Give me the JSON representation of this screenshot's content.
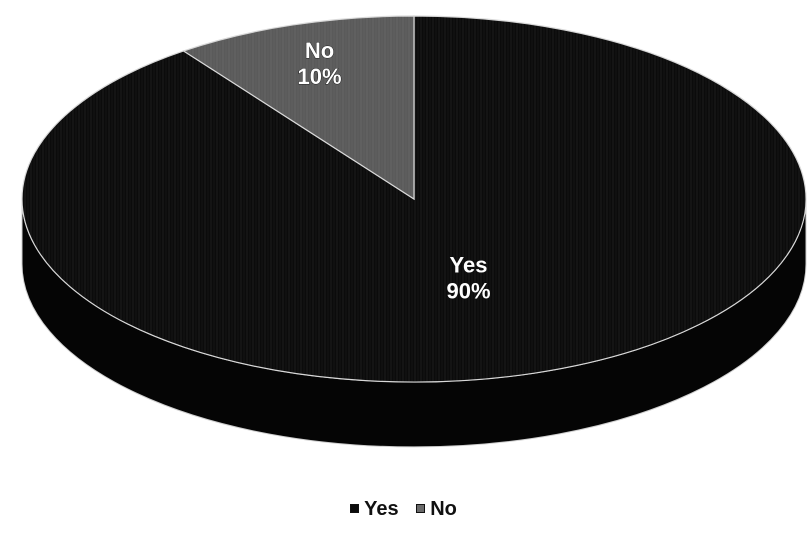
{
  "chart_data": {
    "type": "pie",
    "style": "3d",
    "title": "",
    "slices": [
      {
        "name": "Yes",
        "value": 90,
        "label": "Yes\n90%",
        "color": "#0b0b0b"
      },
      {
        "name": "No",
        "value": 10,
        "label": "No\n10%",
        "color": "#5a5a5a"
      }
    ],
    "legend": {
      "position": "bottom",
      "items": [
        {
          "name": "Yes",
          "color": "#0b0b0b"
        },
        {
          "name": "No",
          "color": "#6a6a6a"
        }
      ]
    }
  }
}
